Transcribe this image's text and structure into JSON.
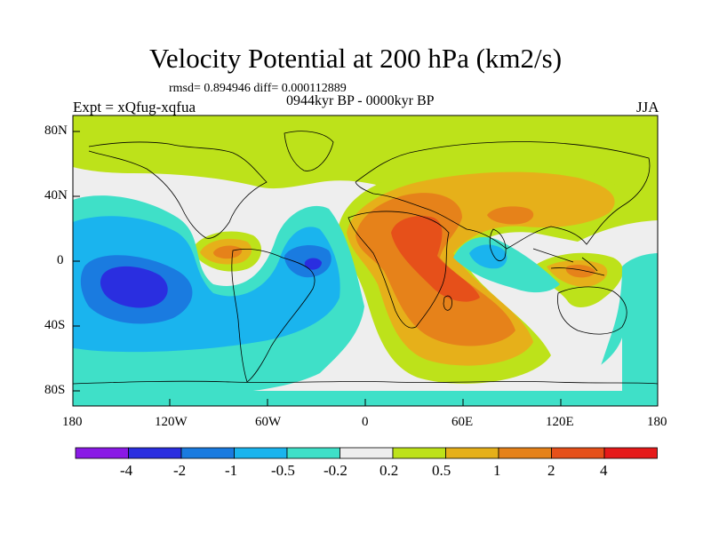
{
  "title": "Velocity Potential at 200 hPa (km2/s)",
  "stats": "rmsd= 0.894946 diff= 0.000112889",
  "experiment": "Expt = xQfug-xqfua",
  "period": "0944kyr BP - 0000kyr BP",
  "season": "JJA",
  "lat_ticks": [
    "80N",
    "40N",
    "0",
    "40S",
    "80S"
  ],
  "lon_ticks": [
    "180",
    "120W",
    "60W",
    "0",
    "60E",
    "120E",
    "180"
  ],
  "colorbar": {
    "labels": [
      "-4",
      "-2",
      "-1",
      "-0.5",
      "-0.2",
      "0.2",
      "0.5",
      "1",
      "2",
      "4"
    ],
    "colors": [
      "#8a1ae6",
      "#2a2ee0",
      "#1a7be0",
      "#1ab4ee",
      "#3fe0c8",
      "#eeeeee",
      "#bde21a",
      "#e6b01a",
      "#e6821a",
      "#e6501a",
      "#e61a1a"
    ]
  },
  "palette": {
    "neutral": "#eeeeee",
    "pos_weak": "#bde21a",
    "pos_med": "#e6b01a",
    "pos_strong": "#e6821a",
    "pos_max": "#e6501a",
    "neg_weak": "#3fe0c8",
    "neg_med": "#1ab4ee",
    "neg_strong": "#1a7be0",
    "neg_max": "#2a2ee0"
  }
}
